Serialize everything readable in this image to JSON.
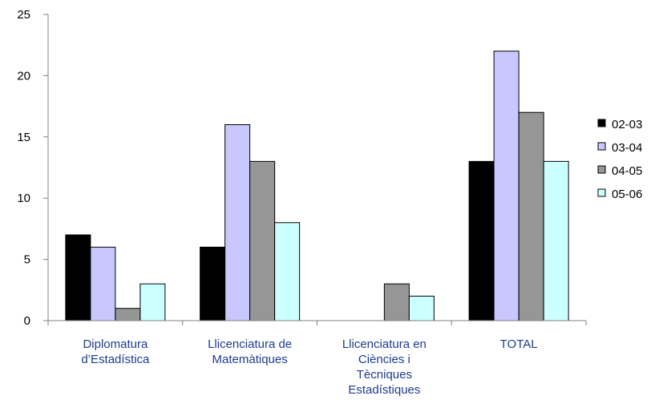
{
  "chart_data": {
    "type": "bar",
    "categories": [
      [
        "Diplomatura",
        "d’Estadística"
      ],
      [
        "Llicenciatura de",
        "Matemàtiques"
      ],
      [
        "Llicenciatura en",
        "Ciències i",
        "Tècniques",
        "Estadístiques"
      ],
      [
        "TOTAL"
      ]
    ],
    "series": [
      {
        "name": "02-03",
        "color": "#000000",
        "values": [
          7,
          6,
          0,
          13
        ]
      },
      {
        "name": "03-04",
        "color": "#c8c8ff",
        "values": [
          6,
          16,
          0,
          22
        ]
      },
      {
        "name": "04-05",
        "color": "#969696",
        "values": [
          1,
          13,
          3,
          17
        ]
      },
      {
        "name": "05-06",
        "color": "#ccffff",
        "values": [
          3,
          8,
          2,
          13
        ]
      }
    ],
    "ylim": [
      0,
      25
    ],
    "yticks": [
      0,
      5,
      10,
      15,
      20,
      25
    ],
    "legend_position": "right",
    "grid": false,
    "title": "",
    "xlabel": "",
    "ylabel": ""
  }
}
